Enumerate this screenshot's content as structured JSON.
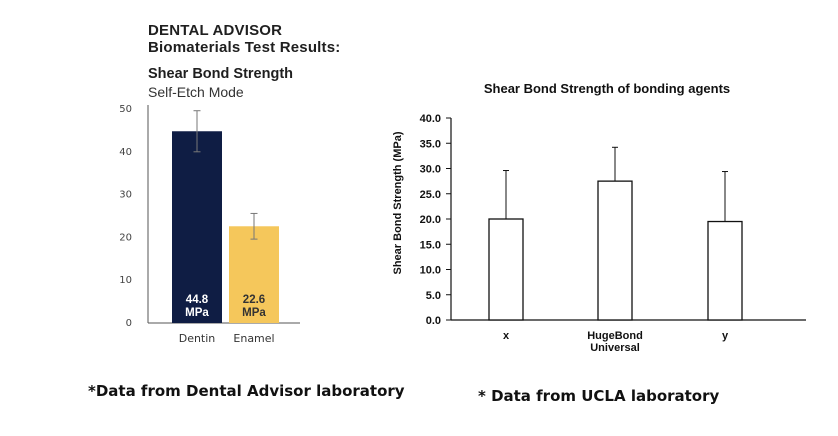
{
  "header": {
    "brand_line1": "DENTAL ADVISOR",
    "brand_line2": "Biomaterials Test Results:"
  },
  "footnotes": {
    "left": "*Data from Dental Advisor laboratory",
    "right": "* Data from UCLA laboratory"
  },
  "chart_data": [
    {
      "type": "bar",
      "title": "Shear Bond Strength",
      "subtitle": "Self-Etch Mode",
      "categories": [
        "Dentin",
        "Enamel"
      ],
      "values": [
        44.8,
        22.6
      ],
      "errors": [
        4.8,
        3.0
      ],
      "value_labels": [
        "44.8",
        "22.6"
      ],
      "unit_label": "MPa",
      "colors": [
        "#0f1d44",
        "#f5c75b"
      ],
      "label_colors": [
        "#ffffff",
        "#333333"
      ],
      "yticks": [
        "0",
        "10",
        "20",
        "30",
        "40",
        "50"
      ],
      "ylim": [
        0,
        50
      ],
      "grid": false
    },
    {
      "type": "bar",
      "title": "Shear Bond Strength of bonding agents",
      "ylabel": "Shear Bond Strength (MPa)",
      "xlabel": "",
      "categories": [
        "x",
        "HugeBond Universal",
        "y"
      ],
      "category_lines": [
        [
          "x"
        ],
        [
          "HugeBond",
          "Universal"
        ],
        [
          "y"
        ]
      ],
      "values": [
        20.0,
        27.5,
        19.5
      ],
      "errors": [
        9.6,
        6.7,
        9.9
      ],
      "yticks": [
        "0.0",
        "5.0",
        "10.0",
        "15.0",
        "20.0",
        "25.0",
        "30.0",
        "35.0",
        "40.0"
      ],
      "ylim": [
        0,
        40
      ],
      "grid": false
    }
  ]
}
